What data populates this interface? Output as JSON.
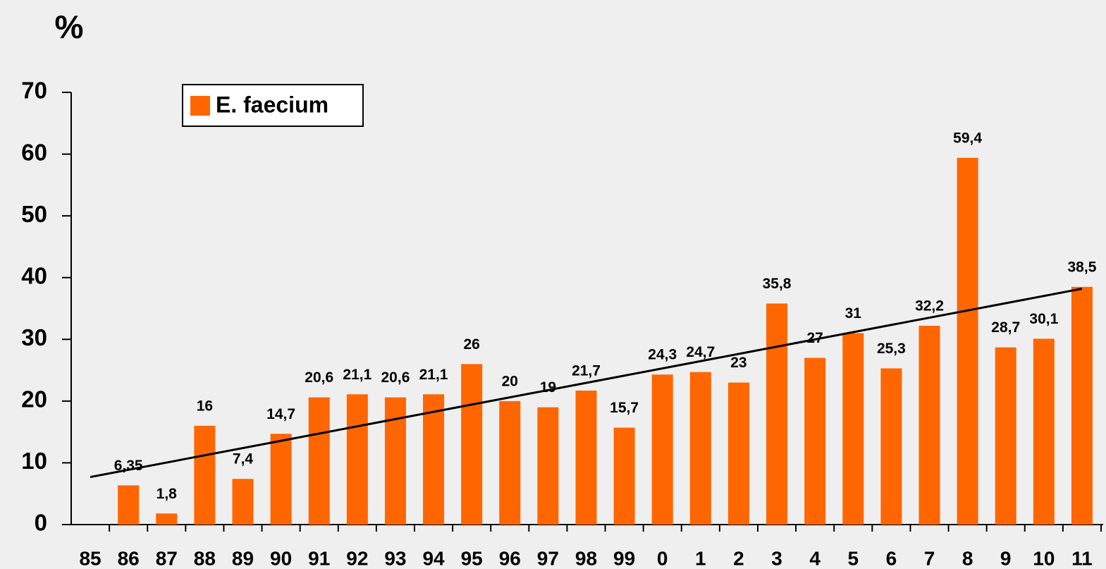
{
  "chart_data": {
    "type": "bar",
    "y_unit_label": "%",
    "categories": [
      "85",
      "86",
      "87",
      "88",
      "89",
      "90",
      "91",
      "92",
      "93",
      "94",
      "95",
      "96",
      "97",
      "98",
      "99",
      "0",
      "1",
      "2",
      "3",
      "4",
      "5",
      "6",
      "7",
      "8",
      "9",
      "10",
      "11"
    ],
    "series": [
      {
        "name": "E. faecium",
        "color": "#ff6600",
        "values": [
          null,
          6.35,
          1.8,
          16,
          7.4,
          14.7,
          20.6,
          21.1,
          20.6,
          21.1,
          26,
          20,
          19,
          21.7,
          15.7,
          24.3,
          24.7,
          23,
          35.8,
          27,
          31,
          25.3,
          32.2,
          59.4,
          28.7,
          30.1,
          38.5
        ],
        "value_labels": [
          null,
          "6,35",
          "1,8",
          "16",
          "7,4",
          "14,7",
          "20,6",
          "21,1",
          "20,6",
          "21,1",
          "26",
          "20",
          "19",
          "21,7",
          "15,7",
          "24,3",
          "24,7",
          "23",
          "35,8",
          "27",
          "31",
          "25,3",
          "32,2",
          "59,4",
          "28,7",
          "30,1",
          "38,5"
        ]
      }
    ],
    "trendline": {
      "color": "#000000",
      "start": 7.7,
      "end": 38.2
    },
    "ylim": [
      0,
      70
    ],
    "yticks": [
      0,
      10,
      20,
      30,
      40,
      50,
      60,
      70
    ],
    "grid": false,
    "legend": "upper left"
  }
}
